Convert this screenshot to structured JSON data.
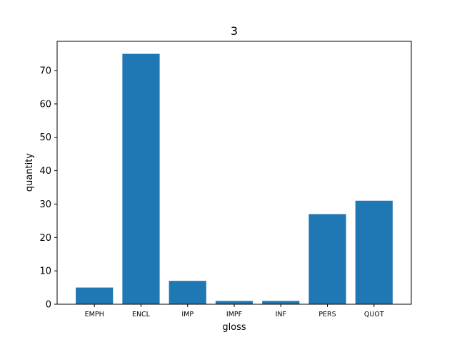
{
  "chart_data": {
    "type": "bar",
    "title": "3",
    "xlabel": "gloss",
    "ylabel": "quantity",
    "categories": [
      "EMPH",
      "ENCL",
      "IMP",
      "IMPF",
      "INF",
      "PERS",
      "QUOT"
    ],
    "values": [
      5,
      75,
      7,
      1,
      1,
      27,
      31
    ],
    "ylim": [
      0,
      78.75
    ],
    "yticks": [
      0,
      10,
      20,
      30,
      40,
      50,
      60,
      70
    ],
    "bar_color": "#1f77b4",
    "grid": false,
    "legend": "none"
  }
}
